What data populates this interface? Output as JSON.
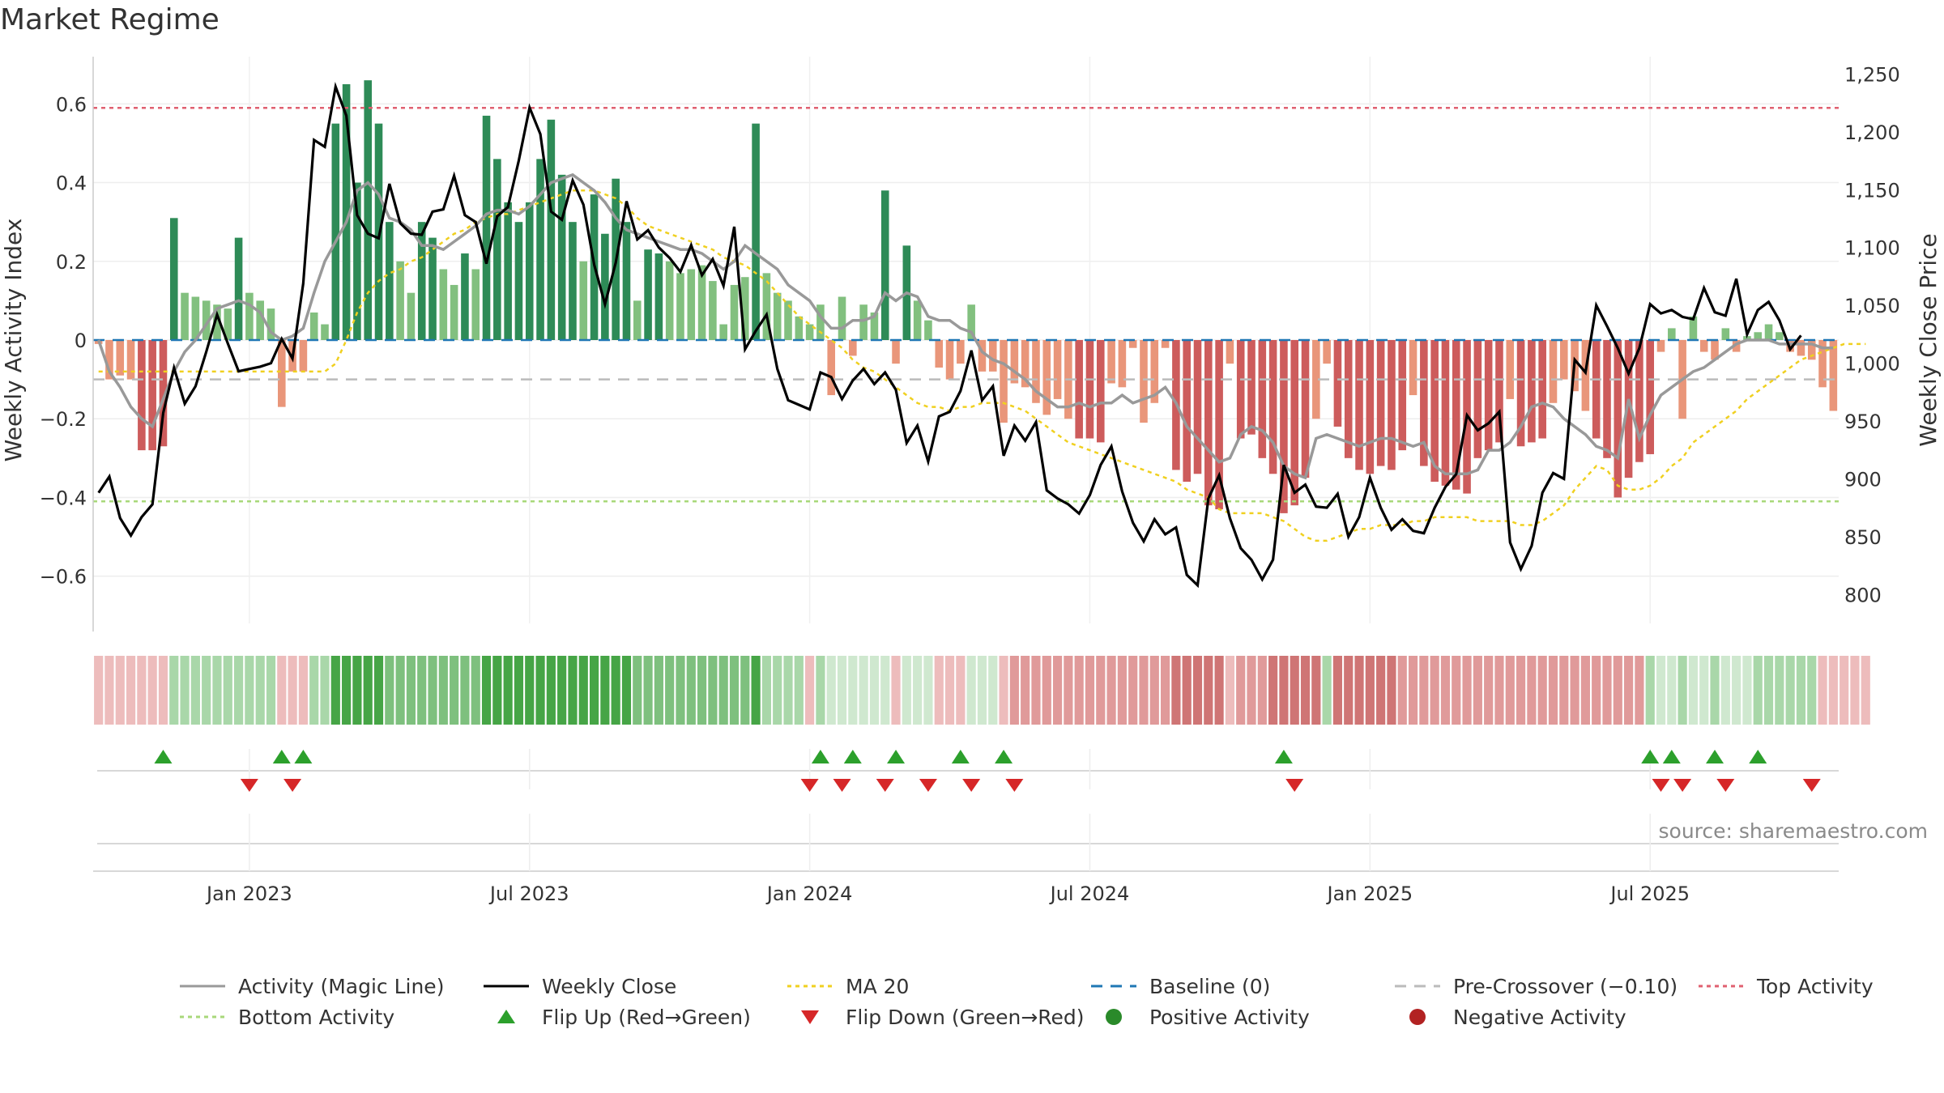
{
  "title": "Market Regime",
  "source": "source: sharemaestro.com",
  "colors": {
    "strong_green": "#2e8b57",
    "light_green": "#82c07f",
    "strong_red": "#cd5c5c",
    "light_red": "#e9967a",
    "weekly_close": "#000000",
    "magic_line": "#999999",
    "ma20": "#f0d020",
    "baseline": "#1f77b4",
    "precross": "#bbbbbb",
    "top": "#e06070",
    "bottom": "#a8d87a",
    "flip_up": "#2ca02c",
    "flip_down": "#d62728"
  },
  "chart_data": {
    "type": "bar+line",
    "ylabel": "Weekly Activity Index",
    "y2label": "Weekly Close Price",
    "ylim": [
      -0.72,
      0.72
    ],
    "y2lim": [
      775,
      1265
    ],
    "yticks": [
      {
        "v": 0.6,
        "t": "0.6"
      },
      {
        "v": 0.4,
        "t": "0.4"
      },
      {
        "v": 0.2,
        "t": "0.2"
      },
      {
        "v": 0,
        "t": "0"
      },
      {
        "v": -0.2,
        "t": "−0.2"
      },
      {
        "v": -0.4,
        "t": "−0.4"
      },
      {
        "v": -0.6,
        "t": "−0.6"
      }
    ],
    "y2ticks": [
      {
        "v": 1250,
        "t": "1,250"
      },
      {
        "v": 1200,
        "t": "1,200"
      },
      {
        "v": 1150,
        "t": "1,150"
      },
      {
        "v": 1100,
        "t": "1,100"
      },
      {
        "v": 1050,
        "t": "1,050"
      },
      {
        "v": 1000,
        "t": "1,000"
      },
      {
        "v": 950,
        "t": "950"
      },
      {
        "v": 900,
        "t": "900"
      },
      {
        "v": 850,
        "t": "850"
      },
      {
        "v": 800,
        "t": "800"
      }
    ],
    "xticks": [
      {
        "w": 14,
        "t": "Jan 2023"
      },
      {
        "w": 40,
        "t": "Jul 2023"
      },
      {
        "w": 66,
        "t": "Jan 2024"
      },
      {
        "w": 92,
        "t": "Jul 2024"
      },
      {
        "w": 118,
        "t": "Jan 2025"
      },
      {
        "w": 144,
        "t": "Jul 2025"
      }
    ],
    "top_activity": 0.59,
    "bottom_activity": -0.41,
    "baseline": 0,
    "pre_crossover": -0.1,
    "activity": [
      -0.01,
      -0.1,
      -0.09,
      -0.1,
      -0.28,
      -0.28,
      -0.27,
      0.31,
      0.12,
      0.11,
      0.1,
      0.09,
      0.08,
      0.26,
      0.12,
      0.1,
      0.08,
      -0.17,
      -0.08,
      -0.08,
      0.07,
      0.04,
      0.55,
      0.65,
      0.4,
      0.66,
      0.55,
      0.3,
      0.2,
      0.12,
      0.3,
      0.26,
      0.18,
      0.14,
      0.22,
      0.18,
      0.57,
      0.46,
      0.35,
      0.3,
      0.35,
      0.46,
      0.56,
      0.42,
      0.3,
      0.2,
      0.37,
      0.27,
      0.41,
      0.3,
      0.1,
      0.23,
      0.22,
      0.2,
      0.17,
      0.18,
      0.19,
      0.15,
      0.04,
      0.14,
      0.16,
      0.55,
      0.17,
      0.12,
      0.1,
      0.06,
      0.04,
      0.09,
      -0.14,
      0.11,
      -0.04,
      0.09,
      0.07,
      0.38,
      -0.06,
      0.24,
      0.1,
      0.05,
      -0.07,
      -0.1,
      -0.06,
      0.09,
      -0.08,
      -0.08,
      -0.21,
      -0.11,
      -0.12,
      -0.16,
      -0.19,
      -0.15,
      -0.2,
      -0.25,
      -0.25,
      -0.26,
      -0.11,
      -0.12,
      -0.02,
      -0.21,
      -0.16,
      -0.02,
      -0.33,
      -0.36,
      -0.34,
      -0.42,
      -0.43,
      -0.06,
      -0.25,
      -0.24,
      -0.3,
      -0.34,
      -0.44,
      -0.42,
      -0.35,
      -0.2,
      -0.06,
      -0.22,
      -0.3,
      -0.33,
      -0.34,
      -0.32,
      -0.33,
      -0.28,
      -0.14,
      -0.32,
      -0.36,
      -0.37,
      -0.38,
      -0.39,
      -0.3,
      -0.28,
      -0.26,
      -0.15,
      -0.27,
      -0.26,
      -0.25,
      -0.16,
      -0.1,
      -0.13,
      -0.18,
      -0.25,
      -0.3,
      -0.4,
      -0.35,
      -0.31,
      -0.29,
      -0.03,
      0.03,
      -0.2,
      0.06,
      -0.03,
      -0.05,
      0.03,
      -0.03,
      0.01,
      0.02,
      0.04,
      0.02,
      -0.03,
      -0.04,
      -0.05,
      -0.12,
      -0.18
    ],
    "magic_line": [
      0,
      -0.08,
      -0.12,
      -0.17,
      -0.2,
      -0.22,
      -0.15,
      -0.08,
      -0.03,
      0,
      0.04,
      0.08,
      0.09,
      0.1,
      0.09,
      0.07,
      0.02,
      0,
      0.01,
      0.03,
      0.12,
      0.2,
      0.25,
      0.3,
      0.38,
      0.4,
      0.37,
      0.31,
      0.3,
      0.28,
      0.24,
      0.24,
      0.23,
      0.25,
      0.27,
      0.29,
      0.32,
      0.33,
      0.33,
      0.32,
      0.34,
      0.37,
      0.4,
      0.41,
      0.42,
      0.4,
      0.38,
      0.35,
      0.31,
      0.28,
      0.27,
      0.26,
      0.25,
      0.24,
      0.23,
      0.23,
      0.22,
      0.2,
      0.18,
      0.2,
      0.24,
      0.22,
      0.2,
      0.18,
      0.14,
      0.12,
      0.1,
      0.06,
      0.03,
      0.03,
      0.05,
      0.05,
      0.06,
      0.12,
      0.1,
      0.12,
      0.11,
      0.06,
      0.05,
      0.05,
      0.03,
      0.02,
      -0.03,
      -0.05,
      -0.06,
      -0.08,
      -0.1,
      -0.13,
      -0.15,
      -0.17,
      -0.17,
      -0.16,
      -0.17,
      -0.16,
      -0.16,
      -0.14,
      -0.16,
      -0.15,
      -0.14,
      -0.12,
      -0.16,
      -0.22,
      -0.25,
      -0.28,
      -0.31,
      -0.3,
      -0.24,
      -0.22,
      -0.23,
      -0.26,
      -0.32,
      -0.34,
      -0.35,
      -0.25,
      -0.24,
      -0.25,
      -0.26,
      -0.27,
      -0.26,
      -0.25,
      -0.25,
      -0.26,
      -0.27,
      -0.26,
      -0.32,
      -0.34,
      -0.34,
      -0.34,
      -0.33,
      -0.28,
      -0.28,
      -0.26,
      -0.22,
      -0.17,
      -0.16,
      -0.17,
      -0.2,
      -0.22,
      -0.24,
      -0.27,
      -0.28,
      -0.3,
      -0.15,
      -0.25,
      -0.19,
      -0.14,
      -0.12,
      -0.1,
      -0.08,
      -0.07,
      -0.05,
      -0.03,
      -0.01,
      0,
      0,
      0,
      -0.01,
      -0.01,
      -0.01,
      -0.01,
      -0.02,
      -0.02
    ],
    "ma20": [
      -0.08,
      -0.08,
      -0.08,
      -0.08,
      -0.08,
      -0.08,
      -0.08,
      -0.08,
      -0.08,
      -0.08,
      -0.08,
      -0.08,
      -0.08,
      -0.08,
      -0.08,
      -0.08,
      -0.08,
      -0.08,
      -0.08,
      -0.08,
      -0.08,
      -0.08,
      -0.06,
      0,
      0.07,
      0.12,
      0.15,
      0.17,
      0.18,
      0.2,
      0.21,
      0.23,
      0.25,
      0.27,
      0.28,
      0.3,
      0.31,
      0.32,
      0.32,
      0.33,
      0.34,
      0.35,
      0.36,
      0.37,
      0.38,
      0.38,
      0.38,
      0.37,
      0.36,
      0.34,
      0.31,
      0.29,
      0.28,
      0.27,
      0.26,
      0.25,
      0.24,
      0.23,
      0.21,
      0.2,
      0.19,
      0.17,
      0.15,
      0.12,
      0.09,
      0.06,
      0.04,
      0.02,
      0,
      -0.02,
      -0.05,
      -0.07,
      -0.08,
      -0.1,
      -0.12,
      -0.14,
      -0.16,
      -0.17,
      -0.17,
      -0.18,
      -0.17,
      -0.17,
      -0.16,
      -0.16,
      -0.16,
      -0.17,
      -0.18,
      -0.2,
      -0.22,
      -0.24,
      -0.26,
      -0.27,
      -0.28,
      -0.29,
      -0.3,
      -0.31,
      -0.32,
      -0.33,
      -0.34,
      -0.35,
      -0.36,
      -0.38,
      -0.39,
      -0.4,
      -0.43,
      -0.44,
      -0.44,
      -0.44,
      -0.44,
      -0.45,
      -0.46,
      -0.48,
      -0.5,
      -0.51,
      -0.51,
      -0.5,
      -0.49,
      -0.48,
      -0.48,
      -0.47,
      -0.47,
      -0.47,
      -0.46,
      -0.46,
      -0.45,
      -0.45,
      -0.45,
      -0.45,
      -0.46,
      -0.46,
      -0.46,
      -0.46,
      -0.47,
      -0.47,
      -0.46,
      -0.44,
      -0.42,
      -0.38,
      -0.35,
      -0.32,
      -0.33,
      -0.37,
      -0.38,
      -0.38,
      -0.37,
      -0.35,
      -0.32,
      -0.3,
      -0.26,
      -0.24,
      -0.22,
      -0.2,
      -0.18,
      -0.15,
      -0.13,
      -0.11,
      -0.09,
      -0.07,
      -0.05,
      -0.04,
      -0.03,
      -0.02,
      -0.01,
      -0.01,
      -0.01
    ],
    "weekly_close": [
      888,
      902,
      866,
      851,
      867,
      878,
      957,
      996,
      965,
      980,
      1010,
      1042,
      1017,
      993,
      995,
      997,
      1000,
      1021,
      1004,
      1069,
      1193,
      1187,
      1239,
      1214,
      1128,
      1112,
      1108,
      1155,
      1121,
      1112,
      1111,
      1131,
      1133,
      1162,
      1128,
      1122,
      1086,
      1127,
      1135,
      1175,
      1221,
      1198,
      1131,
      1124,
      1158,
      1137,
      1085,
      1051,
      1087,
      1140,
      1107,
      1115,
      1100,
      1091,
      1079,
      1102,
      1076,
      1090,
      1067,
      1118,
      1012,
      1028,
      1042,
      995,
      968,
      964,
      960,
      992,
      988,
      969,
      985,
      995,
      982,
      992,
      977,
      931,
      946,
      915,
      954,
      958,
      976,
      1011,
      968,
      980,
      920,
      946,
      933,
      949,
      890,
      883,
      878,
      870,
      886,
      912,
      928,
      889,
      862,
      846,
      865,
      852,
      858,
      817,
      808,
      883,
      903,
      866,
      840,
      830,
      813,
      830,
      912,
      888,
      895,
      876,
      875,
      887,
      850,
      867,
      901,
      875,
      856,
      865,
      855,
      853,
      875,
      893,
      904,
      955,
      942,
      948,
      958,
      845,
      822,
      842,
      888,
      905,
      900,
      1003,
      992,
      1050,
      1032,
      1013,
      991,
      1013,
      1051,
      1043,
      1046,
      1040,
      1038,
      1065,
      1044,
      1041,
      1073,
      1025,
      1046,
      1053,
      1037,
      1012,
      1024
    ],
    "strip": [
      1,
      1,
      1,
      1,
      1,
      1,
      1,
      5,
      5,
      5,
      5,
      5,
      5,
      5,
      5,
      5,
      5,
      1,
      1,
      1,
      5,
      5,
      7,
      7,
      7,
      7,
      7,
      6,
      6,
      6,
      6,
      6,
      6,
      6,
      6,
      6,
      7,
      7,
      7,
      7,
      7,
      7,
      7,
      7,
      7,
      7,
      7,
      7,
      7,
      7,
      6,
      6,
      6,
      6,
      6,
      6,
      6,
      6,
      6,
      6,
      6,
      7,
      5,
      5,
      5,
      5,
      1,
      5,
      4,
      4,
      4,
      4,
      4,
      4,
      1,
      4,
      4,
      4,
      1,
      1,
      1,
      4,
      4,
      4,
      1,
      2,
      2,
      2,
      2,
      2,
      2,
      2,
      2,
      2,
      2,
      2,
      2,
      2,
      2,
      2,
      3,
      3,
      3,
      3,
      3,
      1,
      2,
      2,
      2,
      3,
      3,
      3,
      3,
      3,
      5,
      3,
      3,
      3,
      3,
      3,
      3,
      2,
      2,
      2,
      2,
      2,
      2,
      2,
      2,
      2,
      2,
      2,
      2,
      2,
      2,
      2,
      2,
      2,
      2,
      2,
      2,
      2,
      2,
      2,
      5,
      4,
      4,
      5,
      4,
      4,
      5,
      4,
      4,
      4,
      5,
      5,
      5,
      5,
      5,
      5,
      1,
      1,
      1,
      1,
      1
    ],
    "flip_up": [
      6,
      17,
      19,
      67,
      70,
      74,
      80,
      84,
      110,
      144,
      146,
      150,
      154
    ],
    "flip_down": [
      14,
      18,
      66,
      69,
      73,
      77,
      81,
      85,
      111,
      145,
      147,
      151,
      159
    ]
  },
  "legend": [
    {
      "label": "Activity (Magic Line)",
      "kind": "line",
      "color": "#999999",
      "dash": ""
    },
    {
      "label": "Weekly Close",
      "kind": "line",
      "color": "#000000",
      "dash": ""
    },
    {
      "label": "MA 20",
      "kind": "line",
      "color": "#f0d020",
      "dash": "5,5"
    },
    {
      "label": "Baseline (0)",
      "kind": "line",
      "color": "#1f77b4",
      "dash": "14,10"
    },
    {
      "label": "Pre-Crossover (−0.10)",
      "kind": "line",
      "color": "#bbbbbb",
      "dash": "14,10"
    },
    {
      "label": "Top Activity",
      "kind": "line",
      "color": "#e06070",
      "dash": "5,5"
    },
    {
      "label": "Bottom Activity",
      "kind": "line",
      "color": "#a8d87a",
      "dash": "5,5"
    },
    {
      "label": "Flip Up (Red→Green)",
      "kind": "up",
      "color": "#2ca02c",
      "dash": ""
    },
    {
      "label": "Flip Down (Green→Red)",
      "kind": "down",
      "color": "#d62728",
      "dash": ""
    },
    {
      "label": "Positive Activity",
      "kind": "dot",
      "color": "#2a8a2a",
      "dash": ""
    },
    {
      "label": "Negative Activity",
      "kind": "dot",
      "color": "#b22222",
      "dash": ""
    }
  ]
}
